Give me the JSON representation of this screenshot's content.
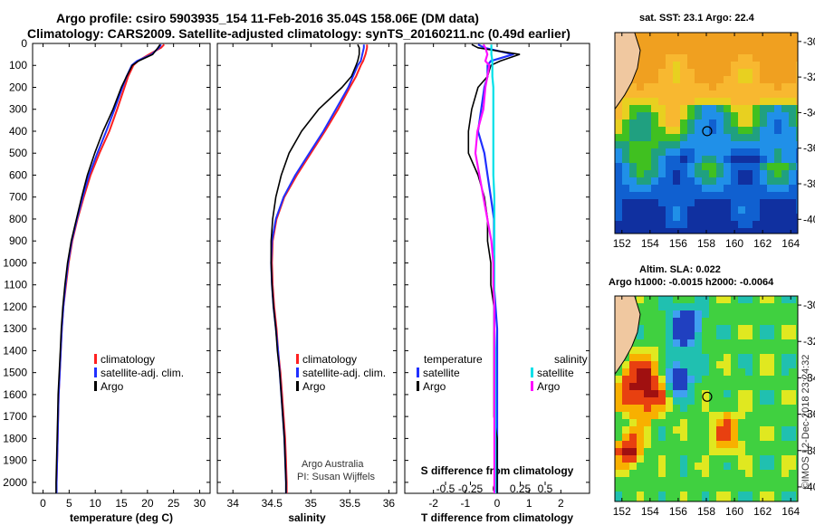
{
  "title": {
    "line1": "Argo profile: csiro 5903935_154 11-Feb-2016 35.04S 158.06E (DM data)",
    "line2": "Climatology: CARS2009. Satellite-adjusted climatology: synTS_20160211.nc (0.49d earlier)"
  },
  "credit": {
    "line1": "Argo Australia",
    "line2": "PI: Susan Wijffels",
    "stamp": "©IMOS 12-Dec-2018 23:24:32"
  },
  "colors": {
    "climatology": "#ff2020",
    "satellite": "#2030ff",
    "argo": "#000000",
    "sat_salinity": "#00e0e8",
    "argo_salinity": "#ff10ff"
  },
  "legend": {
    "climatology": "climatology",
    "satellite_adj": "satellite-adj. clim.",
    "argo": "Argo",
    "temperature": "temperature",
    "salinity": "salinity",
    "satellite": "satellite"
  },
  "maps": {
    "sst_title": "sat. SST: 23.1 Argo: 22.4",
    "sla_title1": "Altim. SLA: 0.022",
    "sla_title2": "Argo h1000: -0.0015 h2000: -0.0064",
    "lon_ticks": [
      "152",
      "154",
      "156",
      "158",
      "160",
      "162",
      "164"
    ],
    "lat_ticks": [
      "-30",
      "-32",
      "-34",
      "-36",
      "-38",
      "-40"
    ],
    "profile_lon": 158.06,
    "profile_lat": -35.04
  },
  "chart_data": [
    {
      "type": "line",
      "title": "",
      "xlabel": "temperature (deg C)",
      "ylabel": "",
      "xlim": [
        -2,
        32
      ],
      "ylim": [
        2050,
        0
      ],
      "x_ticks": [
        "0",
        "5",
        "10",
        "15",
        "20",
        "25",
        "30"
      ],
      "y_ticks": [
        "0",
        "100",
        "200",
        "300",
        "400",
        "500",
        "600",
        "700",
        "800",
        "900",
        "1000",
        "1100",
        "1200",
        "1300",
        "1400",
        "1500",
        "1600",
        "1700",
        "1800",
        "1900",
        "2000"
      ],
      "depth": [
        5,
        20,
        50,
        80,
        100,
        150,
        200,
        300,
        400,
        500,
        600,
        700,
        800,
        900,
        1000,
        1100,
        1200,
        1300,
        1400,
        1500,
        1600,
        1700,
        1800,
        1900,
        2000,
        2050
      ],
      "series": [
        {
          "name": "climatology",
          "values": [
            23.2,
            22.6,
            20.3,
            18.2,
            17.3,
            16.3,
            15.6,
            14.2,
            12.7,
            10.8,
            9.1,
            7.8,
            6.6,
            5.6,
            4.9,
            4.4,
            3.9,
            3.6,
            3.4,
            3.2,
            3.0,
            2.9,
            2.8,
            2.7,
            2.6,
            2.6
          ]
        },
        {
          "name": "satellite-adj. clim.",
          "values": [
            22.6,
            22.2,
            20.8,
            18.0,
            17.0,
            16.0,
            15.2,
            13.7,
            12.1,
            10.4,
            8.8,
            7.6,
            6.5,
            5.5,
            4.8,
            4.3,
            3.9,
            3.6,
            3.4,
            3.2,
            3.0,
            2.9,
            2.8,
            2.7,
            2.6,
            2.6
          ]
        },
        {
          "name": "Argo",
          "values": [
            22.4,
            22.0,
            21.0,
            18.3,
            17.1,
            16.0,
            15.0,
            13.4,
            11.5,
            9.9,
            8.5,
            7.4,
            6.4,
            5.4,
            4.7,
            4.2,
            3.8,
            3.5,
            3.3,
            3.1,
            2.9,
            2.8,
            2.7,
            2.6,
            2.5,
            2.5
          ]
        }
      ]
    },
    {
      "type": "line",
      "title": "",
      "xlabel": "salinity",
      "ylabel": "",
      "xlim": [
        33.8,
        36.1
      ],
      "ylim": [
        2050,
        0
      ],
      "x_ticks": [
        "34",
        "34.5",
        "35",
        "35.5",
        "36"
      ],
      "depth": [
        5,
        20,
        50,
        80,
        100,
        150,
        200,
        300,
        400,
        500,
        600,
        700,
        800,
        900,
        1000,
        1100,
        1200,
        1300,
        1400,
        1500,
        1600,
        1700,
        1800,
        1900,
        2000,
        2050
      ],
      "series": [
        {
          "name": "climatology",
          "values": [
            35.72,
            35.72,
            35.7,
            35.67,
            35.64,
            35.58,
            35.5,
            35.35,
            35.18,
            35.0,
            34.82,
            34.66,
            34.56,
            34.51,
            34.5,
            34.51,
            34.53,
            34.56,
            34.58,
            34.61,
            34.63,
            34.65,
            34.67,
            34.68,
            34.69,
            34.69
          ]
        },
        {
          "name": "satellite-adj. clim.",
          "values": [
            35.68,
            35.68,
            35.66,
            35.64,
            35.6,
            35.54,
            35.48,
            35.32,
            35.16,
            34.98,
            34.8,
            34.65,
            34.55,
            34.5,
            34.49,
            34.5,
            34.52,
            34.55,
            34.58,
            34.6,
            34.62,
            34.64,
            34.66,
            34.67,
            34.68,
            34.68
          ]
        },
        {
          "name": "Argo",
          "values": [
            35.6,
            35.62,
            35.62,
            35.6,
            35.58,
            35.52,
            35.4,
            35.1,
            34.88,
            34.72,
            34.62,
            34.55,
            34.51,
            34.49,
            34.49,
            34.5,
            34.52,
            34.55,
            34.57,
            34.6,
            34.62,
            34.64,
            34.66,
            34.67,
            34.68,
            34.68
          ]
        }
      ]
    },
    {
      "type": "line",
      "title": "",
      "xlabel": "T difference from climatology",
      "x2label": "S difference from climatology",
      "xlim": [
        -2.9,
        2.9
      ],
      "ylim": [
        2050,
        0
      ],
      "x_ticks": [
        "-2",
        "-1",
        "0",
        "1",
        "2"
      ],
      "x2_ticks": [
        "-0.5",
        "-0.25",
        "0",
        "0.25",
        "0.5"
      ],
      "depth": [
        5,
        20,
        50,
        80,
        100,
        150,
        200,
        300,
        400,
        500,
        600,
        700,
        800,
        900,
        1000,
        1100,
        1200,
        1300,
        1400,
        1500,
        1600,
        1700,
        1800,
        1900,
        2000,
        2050
      ],
      "series": [
        {
          "name": "temperature satellite",
          "values": [
            -0.6,
            -0.4,
            0.5,
            -0.2,
            -0.3,
            -0.3,
            -0.4,
            -0.5,
            -0.6,
            -0.4,
            -0.3,
            -0.2,
            -0.1,
            -0.1,
            -0.1,
            -0.1,
            -0.05,
            0,
            0,
            0,
            0,
            0,
            0,
            0,
            0,
            0
          ]
        },
        {
          "name": "temperature Argo",
          "values": [
            -0.8,
            -0.6,
            0.7,
            0.1,
            -0.2,
            -0.3,
            -0.6,
            -0.8,
            -0.9,
            -0.9,
            -0.6,
            -0.4,
            -0.3,
            -0.3,
            -0.2,
            -0.2,
            -0.1,
            -0.1,
            -0.1,
            -0.1,
            -0.1,
            -0.1,
            0,
            0,
            0,
            0
          ]
        },
        {
          "name": "salinity satellite",
          "values": [
            -0.04,
            -0.04,
            -0.04,
            -0.03,
            -0.03,
            -0.03,
            -0.02,
            -0.02,
            -0.02,
            -0.02,
            -0.02,
            -0.01,
            -0.01,
            -0.01,
            -0.01,
            -0.01,
            -0.01,
            -0.01,
            0,
            0,
            0,
            0,
            0,
            0,
            0,
            0
          ]
        },
        {
          "name": "salinity Argo",
          "values": [
            -0.12,
            -0.1,
            -0.08,
            -0.1,
            -0.06,
            -0.08,
            -0.1,
            -0.12,
            -0.18,
            -0.2,
            -0.16,
            -0.12,
            -0.08,
            -0.04,
            -0.02,
            -0.02,
            -0.01,
            -0.01,
            -0.01,
            -0.01,
            -0.01,
            -0.01,
            -0.01,
            -0.01,
            -0.01,
            -0.01
          ]
        }
      ]
    }
  ]
}
